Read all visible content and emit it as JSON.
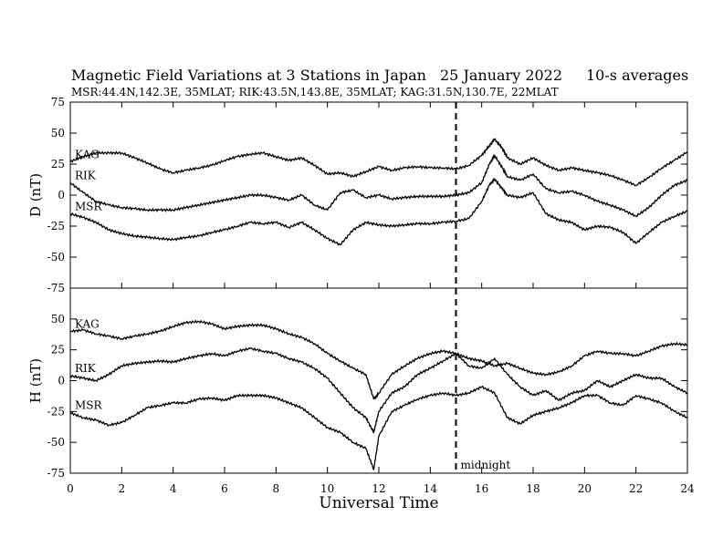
{
  "chart_data": {
    "title": "Magnetic Field Variations at 3 Stations in Japan",
    "date": "25 January 2022",
    "averaging": "10-s averages",
    "subtitle": "MSR:44.4N,142.3E, 35MLAT;  RIK:43.5N,143.8E, 35MLAT;  KAG:31.5N,130.7E, 22MLAT",
    "xlabel": "Universal Time",
    "xlim": [
      0,
      24
    ],
    "xticks": [
      0,
      2,
      4,
      6,
      8,
      10,
      12,
      14,
      16,
      18,
      20,
      22,
      24
    ],
    "annotation": {
      "text": "midnight",
      "x": 15
    },
    "panels": [
      {
        "type": "line",
        "ylabel": "D (nT)",
        "ylim": [
          -75,
          75
        ],
        "yticks": [
          -75,
          -50,
          -25,
          0,
          25,
          50,
          75
        ],
        "series": [
          {
            "name": "KAG",
            "x": [
              0,
              0.5,
              1,
              1.5,
              2,
              2.5,
              3,
              3.5,
              4,
              4.5,
              5,
              5.5,
              6,
              6.5,
              7,
              7.5,
              8,
              8.5,
              9,
              9.5,
              10,
              10.5,
              11,
              11.5,
              12,
              12.5,
              13,
              13.5,
              14,
              14.5,
              15,
              15.5,
              16,
              16.3,
              16.5,
              16.8,
              17,
              17.5,
              18,
              18.5,
              19,
              19.5,
              20,
              20.5,
              21,
              21.5,
              22,
              22.5,
              23,
              23.5,
              24
            ],
            "y": [
              27,
              31,
              34,
              34,
              34,
              30,
              26,
              21,
              18,
              20,
              22,
              24,
              28,
              31,
              33,
              34,
              31,
              28,
              30,
              24,
              17,
              18,
              15,
              19,
              23,
              20,
              22,
              23,
              22,
              22,
              21,
              24,
              32,
              40,
              45,
              38,
              30,
              25,
              30,
              24,
              20,
              22,
              20,
              18,
              16,
              12,
              8,
              14,
              22,
              28,
              35
            ]
          },
          {
            "name": "RIK",
            "x": [
              0,
              0.5,
              1,
              1.5,
              2,
              2.5,
              3,
              3.5,
              4,
              4.5,
              5,
              5.5,
              6,
              6.5,
              7,
              7.5,
              8,
              8.5,
              9,
              9.5,
              10,
              10.5,
              11,
              11.5,
              12,
              12.5,
              13,
              13.5,
              14,
              14.5,
              15,
              15.5,
              16,
              16.3,
              16.5,
              16.8,
              17,
              17.5,
              18,
              18.5,
              19,
              19.5,
              20,
              20.5,
              21,
              21.5,
              22,
              22.5,
              23,
              23.5,
              24
            ],
            "y": [
              10,
              2,
              -5,
              -8,
              -10,
              -11,
              -12,
              -12,
              -12,
              -10,
              -8,
              -6,
              -4,
              -2,
              0,
              0,
              -2,
              -4,
              0,
              -8,
              -12,
              2,
              4,
              -2,
              0,
              -3,
              -2,
              -1,
              -1,
              -1,
              0,
              2,
              10,
              25,
              32,
              22,
              15,
              12,
              17,
              5,
              2,
              3,
              0,
              -5,
              -8,
              -12,
              -17,
              -10,
              0,
              8,
              12
            ]
          },
          {
            "name": "MSR",
            "x": [
              0,
              0.5,
              1,
              1.5,
              2,
              2.5,
              3,
              3.5,
              4,
              4.5,
              5,
              5.5,
              6,
              6.5,
              7,
              7.5,
              8,
              8.5,
              9,
              9.5,
              10,
              10.5,
              11,
              11.5,
              12,
              12.5,
              13,
              13.5,
              14,
              14.5,
              15,
              15.5,
              16,
              16.3,
              16.5,
              16.8,
              17,
              17.5,
              18,
              18.5,
              19,
              19.5,
              20,
              20.5,
              21,
              21.5,
              22,
              22.5,
              23,
              23.5,
              24
            ],
            "y": [
              -15,
              -18,
              -22,
              -28,
              -31,
              -33,
              -34,
              -35,
              -36,
              -34,
              -33,
              -30,
              -28,
              -25,
              -22,
              -23,
              -22,
              -26,
              -22,
              -28,
              -35,
              -40,
              -28,
              -22,
              -24,
              -25,
              -24,
              -23,
              -23,
              -22,
              -21,
              -19,
              -5,
              8,
              13,
              5,
              0,
              -2,
              2,
              -15,
              -20,
              -22,
              -28,
              -25,
              -26,
              -30,
              -39,
              -30,
              -22,
              -17,
              -13
            ]
          }
        ]
      },
      {
        "type": "line",
        "ylabel": "H (nT)",
        "ylim": [
          -75,
          75
        ],
        "yticks": [
          -75,
          -50,
          -25,
          0,
          25,
          50
        ],
        "series": [
          {
            "name": "KAG",
            "x": [
              0,
              0.5,
              1,
              1.5,
              2,
              2.5,
              3,
              3.5,
              4,
              4.5,
              5,
              5.5,
              6,
              6.5,
              7,
              7.5,
              8,
              8.5,
              9,
              9.5,
              10,
              10.5,
              11,
              11.5,
              11.8,
              12,
              12.5,
              13,
              13.5,
              14,
              14.5,
              15,
              15.5,
              16,
              16.5,
              17,
              17.5,
              18,
              18.5,
              19,
              19.5,
              20,
              20.5,
              21,
              21.5,
              22,
              22.5,
              23,
              23.5,
              24
            ],
            "y": [
              40,
              41,
              38,
              36,
              34,
              36,
              38,
              40,
              44,
              47,
              48,
              46,
              42,
              44,
              45,
              45,
              42,
              38,
              35,
              30,
              22,
              16,
              10,
              5,
              -15,
              -10,
              5,
              12,
              18,
              22,
              24,
              22,
              18,
              16,
              12,
              14,
              10,
              6,
              5,
              7,
              12,
              20,
              24,
              22,
              22,
              20,
              24,
              28,
              30,
              29
            ]
          },
          {
            "name": "RIK",
            "x": [
              0,
              0.5,
              1,
              1.5,
              2,
              2.5,
              3,
              3.5,
              4,
              4.5,
              5,
              5.5,
              6,
              6.5,
              7,
              7.5,
              8,
              8.5,
              9,
              9.5,
              10,
              10.5,
              11,
              11.5,
              11.8,
              12,
              12.5,
              13,
              13.5,
              14,
              14.5,
              15,
              15.5,
              16,
              16.5,
              17,
              17.5,
              18,
              18.5,
              19,
              19.5,
              20,
              20.5,
              21,
              21.5,
              22,
              22.5,
              23,
              23.5,
              24
            ],
            "y": [
              4,
              2,
              0,
              5,
              12,
              14,
              15,
              16,
              15,
              18,
              20,
              22,
              20,
              24,
              26,
              24,
              22,
              18,
              15,
              10,
              2,
              -10,
              -22,
              -30,
              -42,
              -25,
              -10,
              -5,
              5,
              10,
              16,
              22,
              12,
              10,
              18,
              5,
              -5,
              -12,
              -8,
              -16,
              -10,
              -8,
              0,
              -5,
              0,
              5,
              2,
              2,
              -5,
              -10
            ]
          },
          {
            "name": "MSR",
            "x": [
              0,
              0.5,
              1,
              1.5,
              2,
              2.5,
              3,
              3.5,
              4,
              4.5,
              5,
              5.5,
              6,
              6.5,
              7,
              7.5,
              8,
              8.5,
              9,
              9.5,
              10,
              10.5,
              11,
              11.5,
              11.8,
              12,
              12.5,
              13,
              13.5,
              14,
              14.5,
              15,
              15.5,
              16,
              16.5,
              17,
              17.5,
              18,
              18.5,
              19,
              19.5,
              20,
              20.5,
              21,
              21.5,
              22,
              22.5,
              23,
              23.5,
              24
            ],
            "y": [
              -26,
              -30,
              -32,
              -36,
              -34,
              -28,
              -22,
              -20,
              -18,
              -18,
              -15,
              -14,
              -16,
              -12,
              -12,
              -12,
              -14,
              -18,
              -22,
              -30,
              -38,
              -42,
              -50,
              -55,
              -72,
              -45,
              -25,
              -20,
              -15,
              -12,
              -10,
              -12,
              -10,
              -5,
              -10,
              -30,
              -35,
              -28,
              -25,
              -22,
              -18,
              -12,
              -12,
              -18,
              -20,
              -12,
              -15,
              -18,
              -25,
              -30
            ]
          }
        ]
      }
    ]
  }
}
